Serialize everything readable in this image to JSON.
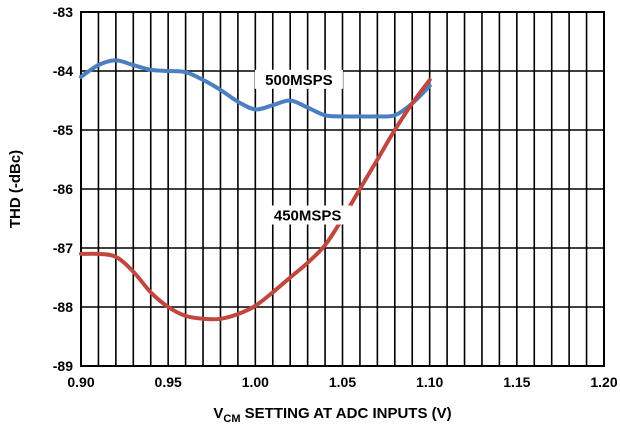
{
  "chart_data": {
    "type": "line",
    "title": "",
    "xlabel_main": "V",
    "xlabel_sub": "CM",
    "xlabel_rest": " SETTING AT ADC INPUTS (V)",
    "ylabel": "THD (-dBc)",
    "xlim": [
      0.9,
      1.2
    ],
    "ylim": [
      -89,
      -83
    ],
    "x_ticks": [
      "0.90",
      "0.95",
      "1.00",
      "1.05",
      "1.10",
      "1.15",
      "1.20"
    ],
    "x_tick_values": [
      0.9,
      0.95,
      1.0,
      1.05,
      1.1,
      1.15,
      1.2
    ],
    "y_ticks": [
      "-83",
      "-84",
      "-85",
      "-86",
      "-87",
      "-88",
      "-89"
    ],
    "y_tick_values": [
      -83,
      -84,
      -85,
      -86,
      -87,
      -88,
      -89
    ],
    "grid": true,
    "series": [
      {
        "name": "500MSPS",
        "color": "#4a7fc1",
        "x": [
          0.9,
          0.91,
          0.92,
          0.93,
          0.94,
          0.95,
          0.96,
          0.97,
          0.98,
          0.99,
          1.0,
          1.01,
          1.02,
          1.03,
          1.04,
          1.05,
          1.06,
          1.07,
          1.08,
          1.09,
          1.1
        ],
        "y": [
          -84.1,
          -83.9,
          -83.82,
          -83.9,
          -83.98,
          -84.0,
          -84.02,
          -84.15,
          -84.32,
          -84.52,
          -84.65,
          -84.58,
          -84.5,
          -84.62,
          -84.75,
          -84.77,
          -84.77,
          -84.77,
          -84.75,
          -84.55,
          -84.25
        ]
      },
      {
        "name": "450MSPS",
        "color": "#c0463e",
        "x": [
          0.9,
          0.91,
          0.92,
          0.93,
          0.94,
          0.95,
          0.96,
          0.97,
          0.98,
          0.99,
          1.0,
          1.01,
          1.02,
          1.03,
          1.04,
          1.05,
          1.06,
          1.07,
          1.08,
          1.09,
          1.1
        ],
        "y": [
          -87.1,
          -87.1,
          -87.15,
          -87.4,
          -87.75,
          -88.0,
          -88.15,
          -88.2,
          -88.2,
          -88.12,
          -87.98,
          -87.75,
          -87.5,
          -87.25,
          -86.95,
          -86.5,
          -86.0,
          -85.5,
          -85.0,
          -84.55,
          -84.15
        ]
      }
    ]
  }
}
